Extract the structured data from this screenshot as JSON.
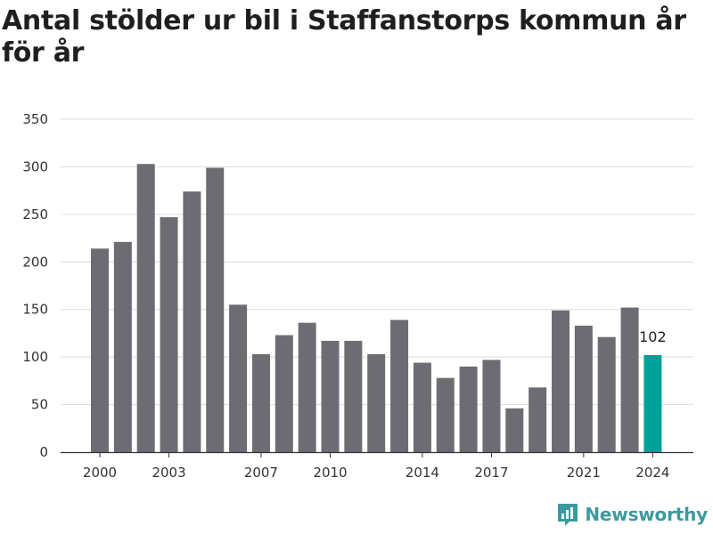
{
  "title": "Antal stölder ur bil i Staffanstorps kommun år för år",
  "brand": {
    "name": "Newsworthy"
  },
  "colors": {
    "bar": "#6d6c72",
    "highlight": "#00a19a",
    "grid": "#dcdcdc",
    "axis": "#333333",
    "brand": "#3a9aa0"
  },
  "chart_data": {
    "type": "bar",
    "title": "Antal stölder ur bil i Staffanstorps kommun år för år",
    "xlabel": "",
    "ylabel": "",
    "ylim": [
      0,
      350
    ],
    "yticks": [
      0,
      50,
      100,
      150,
      200,
      250,
      300,
      350
    ],
    "xticks": [
      2000,
      2003,
      2007,
      2010,
      2014,
      2017,
      2021,
      2024
    ],
    "grid": true,
    "highlight_category": 2024,
    "categories": [
      2000,
      2001,
      2002,
      2003,
      2004,
      2005,
      2006,
      2007,
      2008,
      2009,
      2010,
      2011,
      2012,
      2013,
      2014,
      2015,
      2016,
      2017,
      2018,
      2019,
      2020,
      2021,
      2022,
      2023,
      2024
    ],
    "values": [
      214,
      221,
      303,
      247,
      274,
      299,
      155,
      103,
      123,
      136,
      117,
      117,
      103,
      139,
      94,
      78,
      90,
      97,
      46,
      68,
      149,
      133,
      121,
      152,
      102
    ],
    "data_labels": [
      {
        "category": 2024,
        "text": "102"
      }
    ]
  }
}
